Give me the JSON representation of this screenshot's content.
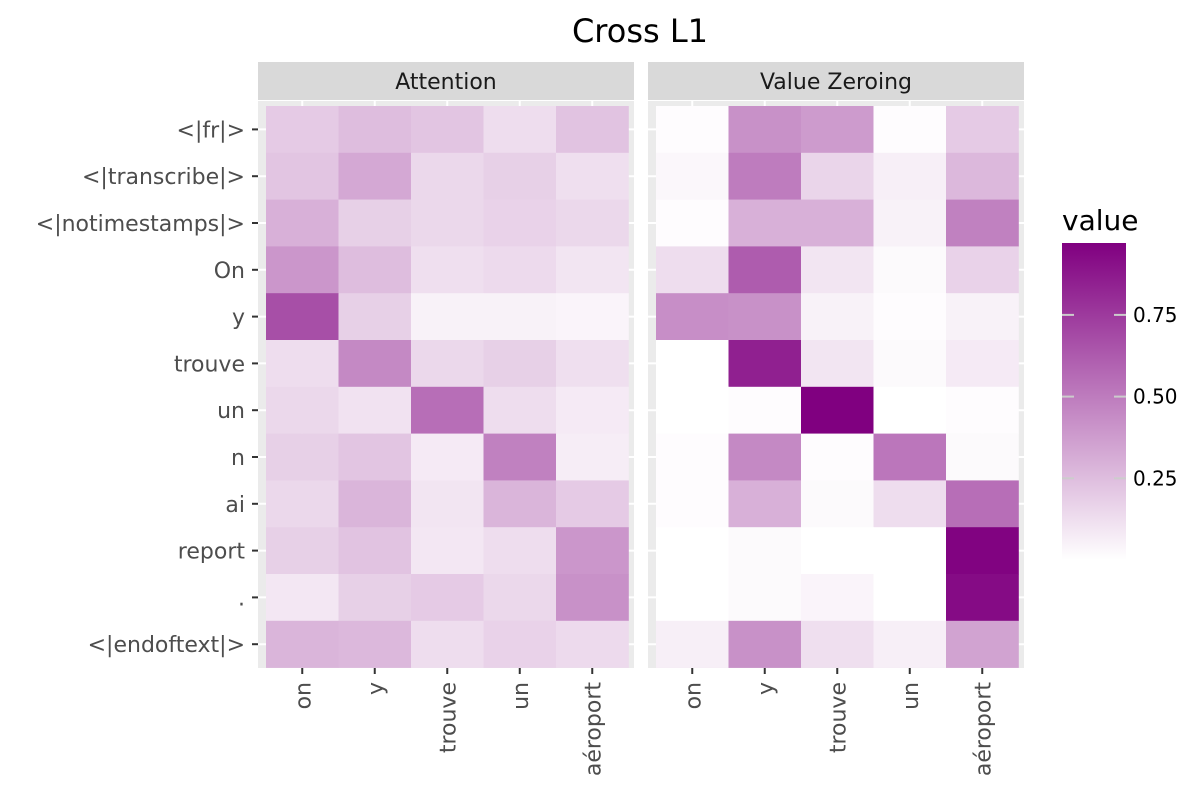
{
  "chart_data": {
    "type": "heatmap",
    "title": "Cross L1",
    "y_categories": [
      "<|fr|>",
      "<|transcribe|>",
      "<|notimestamps|>",
      "On",
      "y",
      "trouve",
      "un",
      "n",
      "ai",
      "report",
      ".",
      "<|endoftext|>"
    ],
    "x_categories": [
      "on",
      "y",
      "trouve",
      "un",
      "aéroport"
    ],
    "facets": [
      {
        "name": "Attention",
        "values": [
          [
            0.2,
            0.25,
            0.22,
            0.13,
            0.23
          ],
          [
            0.22,
            0.33,
            0.15,
            0.18,
            0.12
          ],
          [
            0.3,
            0.18,
            0.15,
            0.17,
            0.15
          ],
          [
            0.4,
            0.25,
            0.12,
            0.14,
            0.1
          ],
          [
            0.67,
            0.18,
            0.05,
            0.05,
            0.04
          ],
          [
            0.13,
            0.45,
            0.15,
            0.18,
            0.12
          ],
          [
            0.15,
            0.11,
            0.55,
            0.13,
            0.08
          ],
          [
            0.18,
            0.22,
            0.08,
            0.48,
            0.07
          ],
          [
            0.15,
            0.28,
            0.1,
            0.28,
            0.2
          ],
          [
            0.18,
            0.23,
            0.09,
            0.13,
            0.4
          ],
          [
            0.09,
            0.18,
            0.2,
            0.15,
            0.42
          ],
          [
            0.28,
            0.27,
            0.13,
            0.17,
            0.14
          ]
        ]
      },
      {
        "name": "Value Zeroing",
        "values": [
          [
            0.01,
            0.42,
            0.38,
            0.01,
            0.2
          ],
          [
            0.03,
            0.5,
            0.16,
            0.06,
            0.27
          ],
          [
            0.01,
            0.3,
            0.3,
            0.05,
            0.48
          ],
          [
            0.13,
            0.62,
            0.1,
            0.02,
            0.17
          ],
          [
            0.43,
            0.42,
            0.05,
            0.01,
            0.05
          ],
          [
            0.0,
            0.85,
            0.1,
            0.02,
            0.08
          ],
          [
            0.0,
            0.01,
            0.97,
            0.0,
            0.01
          ],
          [
            0.01,
            0.45,
            0.01,
            0.52,
            0.02
          ],
          [
            0.01,
            0.3,
            0.02,
            0.13,
            0.55
          ],
          [
            0.0,
            0.02,
            0.0,
            0.0,
            0.96
          ],
          [
            0.0,
            0.02,
            0.04,
            0.0,
            0.93
          ],
          [
            0.06,
            0.42,
            0.12,
            0.06,
            0.35
          ]
        ]
      }
    ],
    "legend": {
      "title": "value",
      "position": "right",
      "range": [
        0,
        0.97
      ],
      "ticks": [
        0.75,
        0.5,
        0.25
      ],
      "tick_labels": [
        "0.75",
        "0.50",
        "0.25"
      ],
      "low_color": "#ffffff",
      "high_color": "#800080"
    },
    "panel_background": "#ebebeb",
    "strip_background": "#d9d9d9",
    "grid": true
  }
}
